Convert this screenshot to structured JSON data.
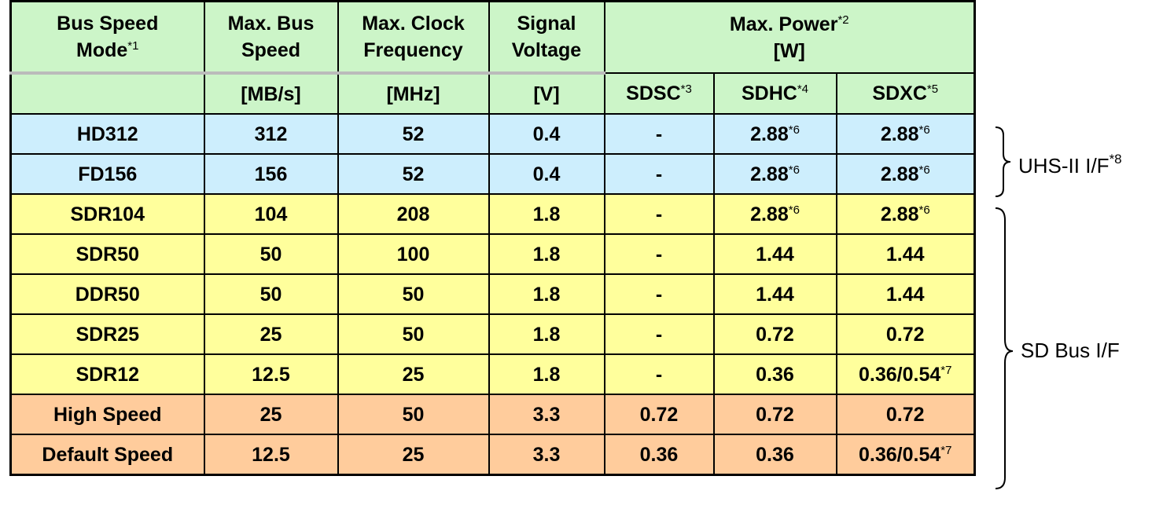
{
  "header": {
    "columns": [
      {
        "lines": [
          "Bus Speed",
          "Mode"
        ],
        "note": "*1"
      },
      {
        "lines": [
          "Max. Bus",
          "Speed"
        ],
        "unit": "[MB/s]"
      },
      {
        "lines": [
          "Max. Clock",
          "Frequency"
        ],
        "unit": "[MHz]"
      },
      {
        "lines": [
          "Signal",
          "Voltage"
        ],
        "unit": "[V]"
      },
      {
        "lines": [
          "Max. Power",
          "[W]"
        ],
        "note": "*2"
      }
    ],
    "power_subcolumns": [
      {
        "text": "SDSC",
        "note": "*3"
      },
      {
        "text": "SDHC",
        "note": "*4"
      },
      {
        "text": "SDXC",
        "note": "*5"
      }
    ],
    "color": "#ccf5c8"
  },
  "rows": [
    {
      "color": "#cdeefd",
      "cells": [
        "HD312",
        "312",
        "52",
        "0.4",
        "-",
        {
          "text": "2.88",
          "note": "*6"
        },
        {
          "text": "2.88",
          "note": "*6"
        }
      ]
    },
    {
      "color": "#cdeefd",
      "cells": [
        "FD156",
        "156",
        "52",
        "0.4",
        "-",
        {
          "text": "2.88",
          "note": "*6"
        },
        {
          "text": "2.88",
          "note": "*6"
        }
      ]
    },
    {
      "color": "#ffff9c",
      "cells": [
        "SDR104",
        "104",
        "208",
        "1.8",
        "-",
        {
          "text": "2.88",
          "note": "*6"
        },
        {
          "text": "2.88",
          "note": "*6"
        }
      ]
    },
    {
      "color": "#ffff9c",
      "cells": [
        "SDR50",
        "50",
        "100",
        "1.8",
        "-",
        "1.44",
        "1.44"
      ]
    },
    {
      "color": "#ffff9c",
      "cells": [
        "DDR50",
        "50",
        "50",
        "1.8",
        "-",
        "1.44",
        "1.44"
      ]
    },
    {
      "color": "#ffff9c",
      "cells": [
        "SDR25",
        "25",
        "50",
        "1.8",
        "-",
        "0.72",
        "0.72"
      ]
    },
    {
      "color": "#ffff9c",
      "cells": [
        "SDR12",
        "12.5",
        "25",
        "1.8",
        "-",
        "0.36",
        {
          "text": "0.36/0.54",
          "note": "*7"
        }
      ]
    },
    {
      "color": "#ffcc9c",
      "cells": [
        "High Speed",
        "25",
        "50",
        "3.3",
        "0.72",
        "0.72",
        "0.72"
      ]
    },
    {
      "color": "#ffcc9c",
      "cells": [
        "Default Speed",
        "12.5",
        "25",
        "3.3",
        "0.36",
        "0.36",
        {
          "text": "0.36/0.54",
          "note": "*7"
        }
      ]
    }
  ],
  "groups": [
    {
      "label": "UHS-II I/F",
      "note": "*8"
    },
    {
      "label": "SD Bus I/F"
    }
  ]
}
